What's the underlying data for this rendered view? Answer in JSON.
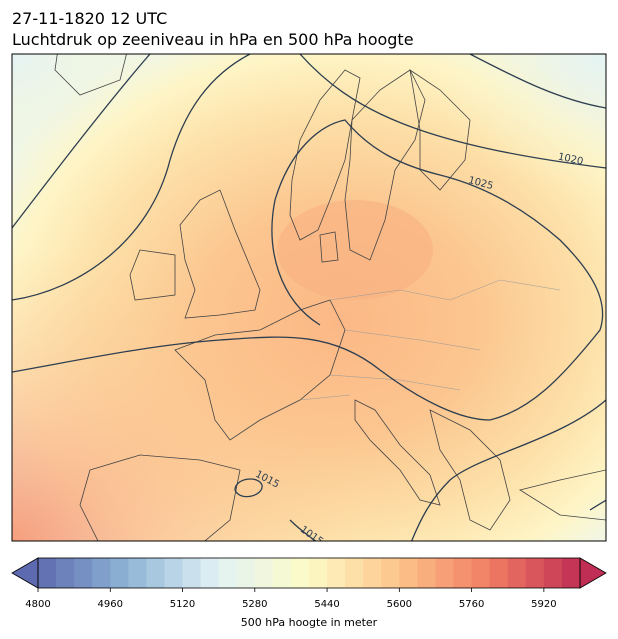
{
  "title": "27-11-1820 12 UTC",
  "subtitle": "Luchtdruk op zeeniveau in hPa en 500 hPa hoogte",
  "contour_labels": [
    "1020",
    "1025",
    "1015",
    "1015"
  ],
  "colorbar": {
    "label": "500 hPa hoogte in meter",
    "lim": [
      4800,
      6000
    ],
    "step": 40,
    "ticks": [
      4800,
      4960,
      5120,
      5280,
      5440,
      5600,
      5760,
      5920
    ],
    "colors": [
      "#5e6aaf",
      "#8fb5d6",
      "#e3f3f5",
      "#fdfbc6",
      "#fcc38a",
      "#f17d63",
      "#c02e55"
    ]
  }
}
